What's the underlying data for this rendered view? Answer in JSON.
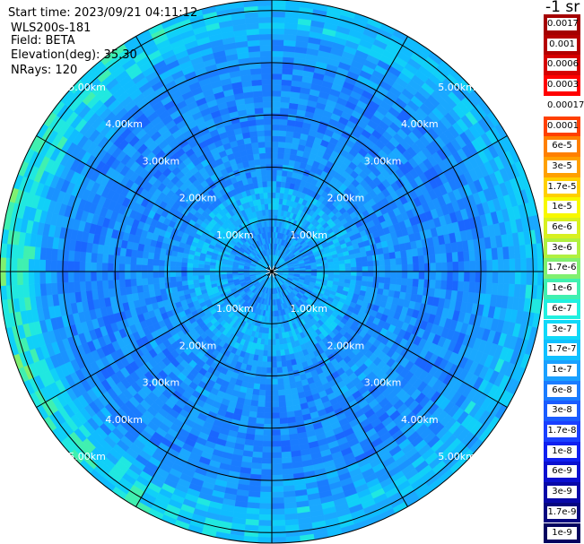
{
  "info": {
    "start_time": "Start time: 2023/09/21 04:11:12",
    "instrument": "WLS200s-181",
    "field": "Field: BETA",
    "elevation": "Elevation(deg): 35.30",
    "nrays": "NRays: 120"
  },
  "colorbar": {
    "units": "-1 sr",
    "entries": [
      {
        "label": "0.0017",
        "color": "#a50000"
      },
      {
        "label": "0.001",
        "color": "#b50000"
      },
      {
        "label": "0.0006",
        "color": "#d60000"
      },
      {
        "label": "0.0003",
        "color": "#ff0000"
      },
      {
        "label": "0.00017",
        "color": "#ffffff"
      },
      {
        "label": "0.0001",
        "color": "#ff4000"
      },
      {
        "label": "6e-5",
        "color": "#ff8000"
      },
      {
        "label": "3e-5",
        "color": "#ffa000"
      },
      {
        "label": "1.7e-5",
        "color": "#ffd000"
      },
      {
        "label": "1e-5",
        "color": "#f8f800"
      },
      {
        "label": "6e-6",
        "color": "#d8f020"
      },
      {
        "label": "3e-6",
        "color": "#b0f040"
      },
      {
        "label": "1.7e-6",
        "color": "#80f070"
      },
      {
        "label": "1e-6",
        "color": "#40f0b0"
      },
      {
        "label": "6e-7",
        "color": "#20f0e0"
      },
      {
        "label": "3e-7",
        "color": "#10d8f8"
      },
      {
        "label": "1.7e-7",
        "color": "#10c0ff"
      },
      {
        "label": "1e-7",
        "color": "#1aa0ff"
      },
      {
        "label": "6e-8",
        "color": "#1a7cff"
      },
      {
        "label": "3e-8",
        "color": "#1a5cff"
      },
      {
        "label": "1.7e-8",
        "color": "#1a40ff"
      },
      {
        "label": "1e-8",
        "color": "#1020f0"
      },
      {
        "label": "6e-9",
        "color": "#0a10d0"
      },
      {
        "label": "3e-9",
        "color": "#0808a8"
      },
      {
        "label": "1.7e-9",
        "color": "#060680"
      },
      {
        "label": "1e-9",
        "color": "#040460"
      }
    ]
  },
  "range_rings": [
    "1.00km",
    "2.00km",
    "3.00km",
    "4.00km",
    "5.00km"
  ],
  "scan": {
    "max_range_km": 5.2,
    "n_rays": 120,
    "n_gates": 48,
    "spokes_deg": [
      0,
      30,
      60,
      90,
      120,
      150,
      180,
      210,
      240,
      270,
      300,
      330
    ]
  }
}
